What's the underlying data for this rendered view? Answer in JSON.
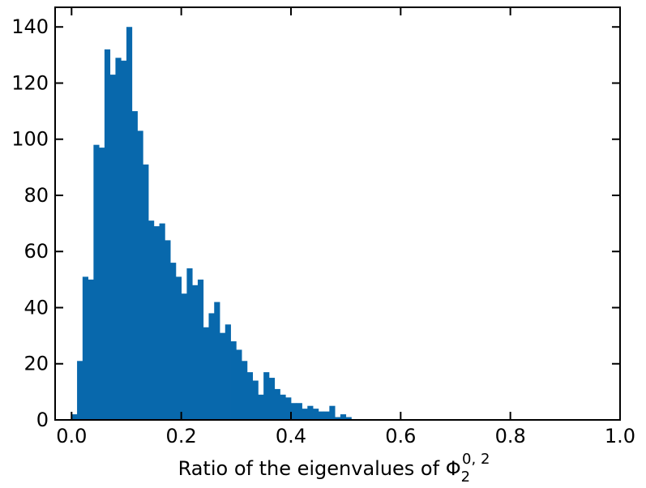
{
  "chart_data": {
    "type": "bar",
    "subtype": "histogram",
    "xlabel": "Ratio of the eigenvalues of Φ",
    "xlabel_sub": "2",
    "xlabel_sup": "0, 2",
    "ylabel": "",
    "xlim": [
      -0.03,
      1.0
    ],
    "ylim": [
      0,
      147
    ],
    "xticks": [
      {
        "value": 0.0,
        "label": "0.0"
      },
      {
        "value": 0.2,
        "label": "0.2"
      },
      {
        "value": 0.4,
        "label": "0.4"
      },
      {
        "value": 0.6,
        "label": "0.6"
      },
      {
        "value": 0.8,
        "label": "0.8"
      },
      {
        "value": 1.0,
        "label": "1.0"
      }
    ],
    "yticks": [
      {
        "value": 0,
        "label": "0"
      },
      {
        "value": 20,
        "label": "20"
      },
      {
        "value": 40,
        "label": "40"
      },
      {
        "value": 60,
        "label": "60"
      },
      {
        "value": 80,
        "label": "80"
      },
      {
        "value": 100,
        "label": "100"
      },
      {
        "value": 120,
        "label": "120"
      },
      {
        "value": 140,
        "label": "140"
      }
    ],
    "bar_color": "#0868ac",
    "bin_edges": [
      0.0,
      0.01,
      0.02,
      0.03,
      0.04,
      0.05,
      0.06,
      0.07,
      0.08,
      0.09,
      0.1,
      0.11,
      0.12,
      0.13,
      0.14,
      0.15,
      0.16,
      0.17,
      0.18,
      0.19,
      0.2,
      0.21,
      0.22,
      0.23,
      0.24,
      0.25,
      0.26,
      0.27,
      0.28,
      0.29,
      0.3,
      0.31,
      0.32,
      0.33,
      0.34,
      0.35,
      0.36,
      0.37,
      0.38,
      0.39,
      0.4,
      0.41,
      0.42,
      0.43,
      0.44,
      0.45,
      0.46,
      0.47,
      0.48,
      0.49,
      0.5,
      0.51,
      0.52,
      0.53,
      0.54,
      0.55,
      0.56,
      0.57,
      0.58,
      0.59,
      0.6,
      0.61,
      0.62,
      0.63,
      0.64,
      0.65,
      0.66
    ],
    "counts": [
      2,
      21,
      51,
      50,
      98,
      97,
      132,
      123,
      129,
      128,
      140,
      110,
      103,
      91,
      71,
      69,
      70,
      64,
      56,
      51,
      45,
      54,
      48,
      50,
      33,
      38,
      42,
      31,
      34,
      28,
      25,
      21,
      17,
      14,
      9,
      17,
      15,
      11,
      9,
      8,
      6,
      6,
      4,
      5,
      4,
      3,
      3,
      5,
      1,
      2,
      1,
      0,
      0,
      0,
      0,
      0,
      0,
      0,
      0,
      0,
      0,
      0,
      0,
      0,
      0,
      0
    ]
  }
}
